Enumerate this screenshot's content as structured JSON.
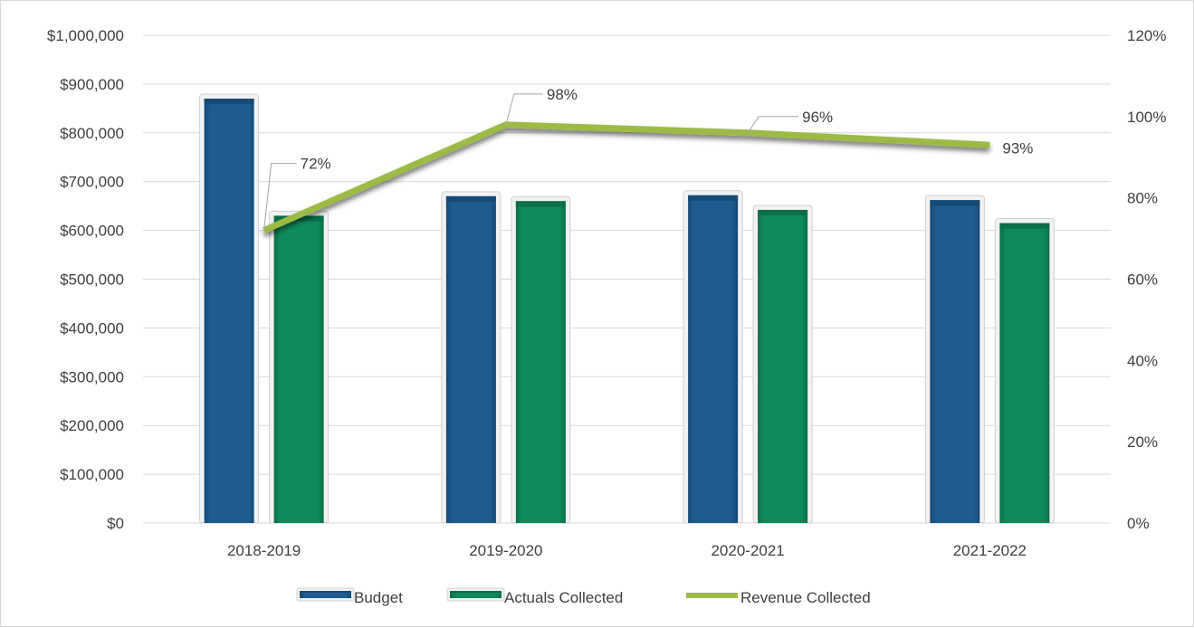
{
  "chart_data": {
    "type": "bar",
    "categories": [
      "2018-2019",
      "2019-2020",
      "2020-2021",
      "2021-2022"
    ],
    "series": [
      {
        "name": "Budget",
        "kind": "bar",
        "axis": "left",
        "values": [
          870000,
          670000,
          672000,
          662000
        ]
      },
      {
        "name": "Actuals Collected",
        "kind": "bar",
        "axis": "left",
        "values": [
          630000,
          660000,
          642000,
          615000
        ]
      },
      {
        "name": "Revenue Collected",
        "kind": "line",
        "axis": "right",
        "values": [
          0.72,
          0.98,
          0.96,
          0.93
        ]
      }
    ],
    "data_labels": [
      "72%",
      "98%",
      "96%",
      "93%"
    ],
    "y_left": {
      "min": 0,
      "max": 1000000,
      "step": 100000,
      "tick_labels": [
        "$0",
        "$100,000",
        "$200,000",
        "$300,000",
        "$400,000",
        "$500,000",
        "$600,000",
        "$700,000",
        "$800,000",
        "$900,000",
        "$1,000,000"
      ]
    },
    "y_right": {
      "min": 0,
      "max": 1.2,
      "step": 0.2,
      "tick_labels": [
        "0%",
        "20%",
        "40%",
        "60%",
        "80%",
        "100%",
        "120%"
      ]
    },
    "grid": true,
    "legend_position": "bottom",
    "colors": {
      "budget": "#1f5c8f",
      "budget_dark": "#154a77",
      "actuals": "#0f8a5a",
      "actuals_dark": "#0b6f48",
      "revenue": "#9bbb45",
      "grid": "#d9d9d9",
      "text": "#404040"
    }
  }
}
